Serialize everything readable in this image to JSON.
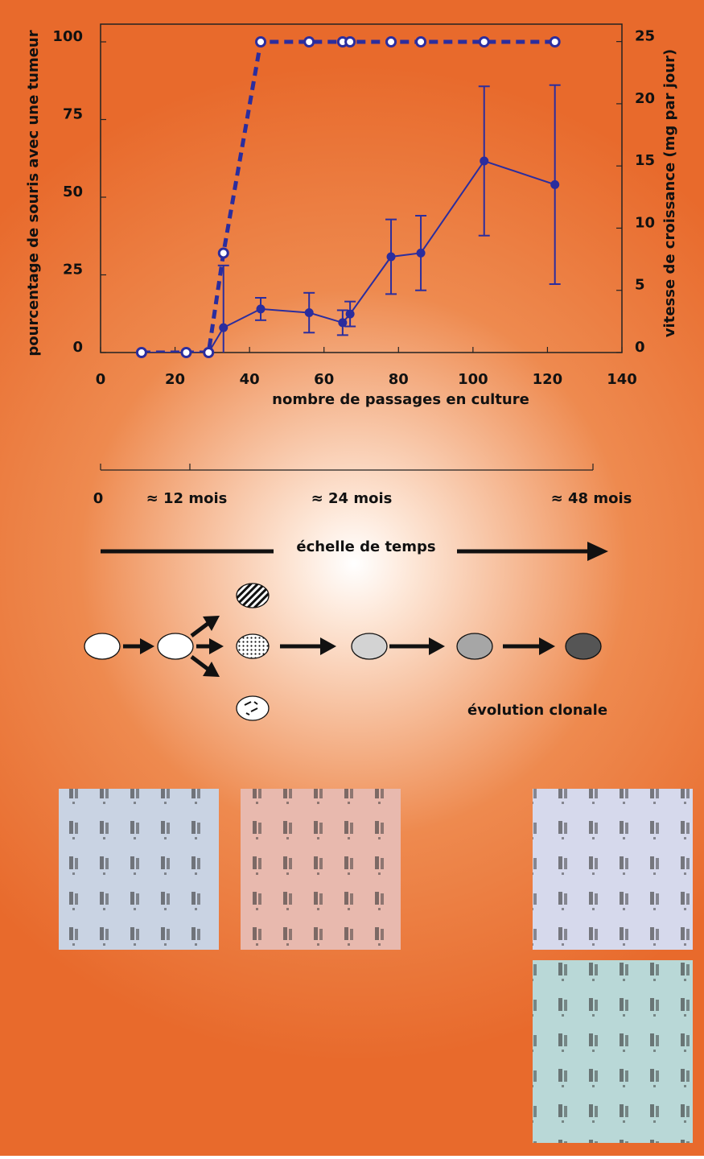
{
  "chart_data": {
    "type": "line",
    "xlabel": "nombre de passages en culture",
    "ylabel": "pourcentage de souris avec une tumeur",
    "y2label": "vitesse de croissance (mg par jour)",
    "x": [
      11,
      23,
      29,
      33,
      43,
      56,
      65,
      67,
      78,
      86,
      103,
      122
    ],
    "xlim": [
      0,
      140
    ],
    "xticks": [
      0,
      20,
      40,
      60,
      80,
      100,
      120,
      140
    ],
    "ylim": [
      0,
      105.7
    ],
    "yticks": [
      0,
      25,
      50,
      75,
      100
    ],
    "y2lim": [
      0,
      26.4
    ],
    "y2ticks": [
      0,
      5,
      10,
      15,
      20,
      25
    ],
    "series": [
      {
        "color": "#2b2d9e",
        "style": "dashed",
        "marker": "hollow",
        "values": [
          0,
          0,
          0,
          32,
          100,
          100,
          100,
          100,
          100,
          100,
          100,
          100
        ]
      },
      {
        "color": "#2b2d9e",
        "style": "solid",
        "marker": "filled",
        "axis": "y2",
        "values": [
          0,
          0,
          0,
          2,
          3.5,
          3.2,
          2.4,
          3.1,
          7.7,
          8,
          15.4,
          13.5
        ],
        "errors": [
          0,
          0,
          0,
          5,
          0.9,
          1.6,
          1,
          1,
          3,
          3,
          6,
          8
        ]
      }
    ]
  },
  "diagram": {
    "time_labels": [
      "0",
      "≈ 12 mois",
      "≈ 24 mois",
      "≈ 48 mois"
    ],
    "time_scale_label": "échelle de temps",
    "evolution_label": "évolution clonale"
  }
}
